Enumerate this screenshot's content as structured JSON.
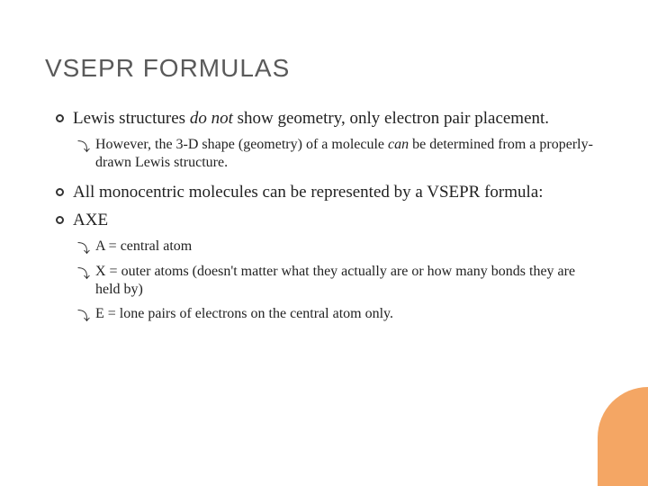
{
  "title": "VSEPR FORMULAS",
  "bullets": {
    "b1_pre": "Lewis structures ",
    "b1_em": "do not",
    "b1_post": " show geometry, only electron pair placement.",
    "b1_sub_pre": "However, the 3-D shape (geometry) of a molecule ",
    "b1_sub_em": "can",
    "b1_sub_post": " be determined from a properly-drawn Lewis structure.",
    "b2": "All monocentric molecules can be represented by a VSEPR formula:",
    "b3": "AXE",
    "b3_sub1": "A = central atom",
    "b3_sub2": "X = outer atoms (doesn't matter what they actually are or how many bonds they are held by)",
    "b3_sub3": "E = lone pairs of electrons on the central atom only."
  },
  "script_bullet": "⤵",
  "styling": {
    "title_color": "#5a5a5a",
    "title_fontsize": 28,
    "body_fontsize_l1": 19,
    "body_fontsize_l2": 16,
    "text_color": "#222222",
    "accent_color": "#f4a664",
    "background_color": "#ffffff",
    "bullet_border_color": "#333333",
    "slide_width": 720,
    "slide_height": 540
  }
}
